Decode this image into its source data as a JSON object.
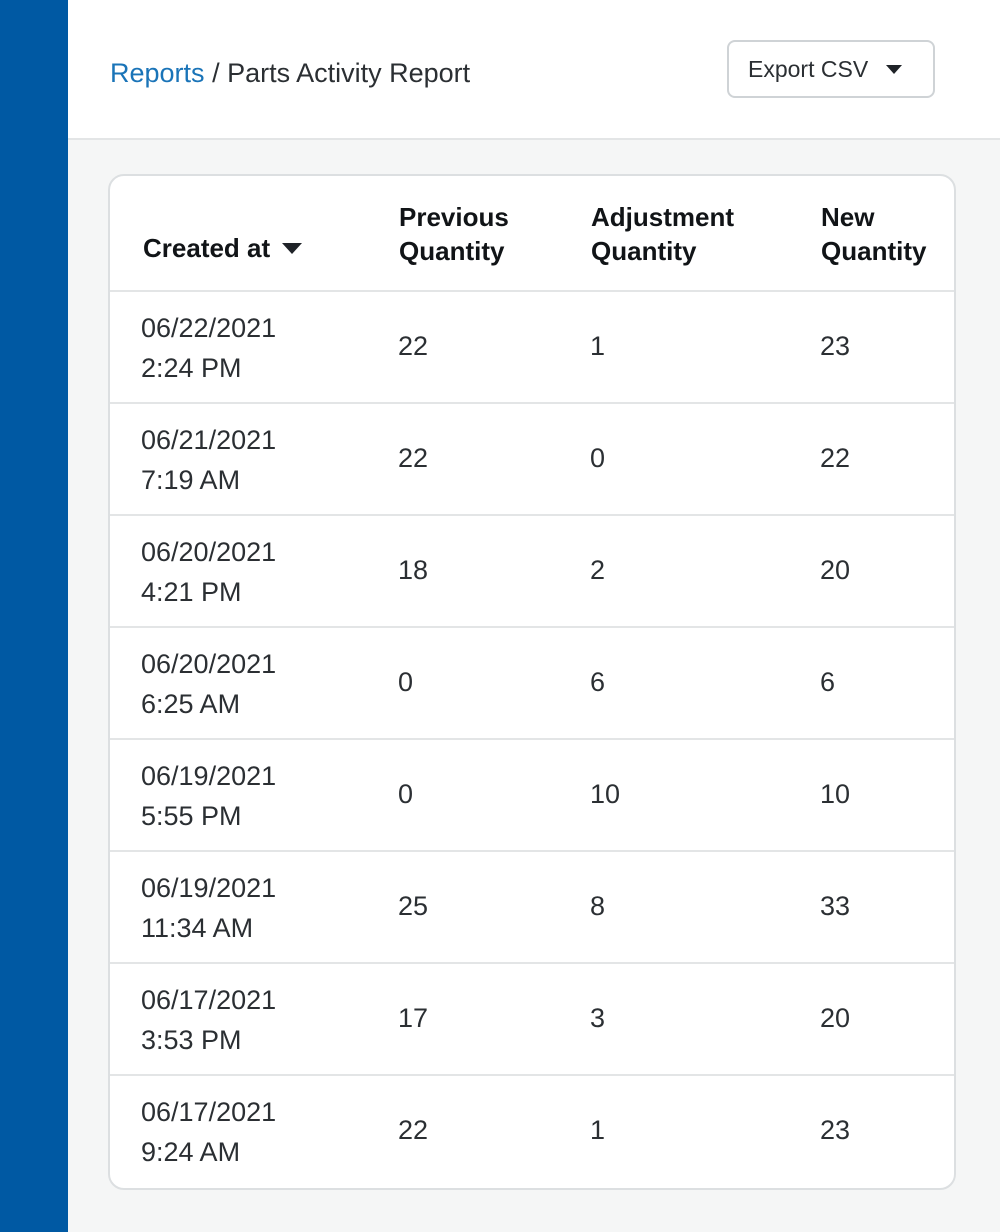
{
  "breadcrumb": {
    "parent": "Reports",
    "separator": "/",
    "current": "Parts Activity Report"
  },
  "export_button": {
    "label": "Export CSV",
    "icon": "caret-down-icon"
  },
  "table": {
    "headers": {
      "created_at": "Created at",
      "previous_line1": "Previous",
      "previous_line2": "Quantity",
      "adjustment_line1": "Adjustment",
      "adjustment_line2": "Quantity",
      "new_line1": "New",
      "new_line2": "Quantity"
    },
    "sort_icon": "caret-down-icon",
    "rows": [
      {
        "date": "06/22/2021",
        "time": "2:24 PM",
        "previous": "22",
        "adjustment": "1",
        "new": "23"
      },
      {
        "date": "06/21/2021",
        "time": "7:19 AM",
        "previous": "22",
        "adjustment": "0",
        "new": "22"
      },
      {
        "date": "06/20/2021",
        "time": "4:21 PM",
        "previous": "18",
        "adjustment": "2",
        "new": "20"
      },
      {
        "date": "06/20/2021",
        "time": "6:25 AM",
        "previous": "0",
        "adjustment": "6",
        "new": "6"
      },
      {
        "date": "06/19/2021",
        "time": "5:55 PM",
        "previous": "0",
        "adjustment": "10",
        "new": "10"
      },
      {
        "date": "06/19/2021",
        "time": "11:34 AM",
        "previous": "25",
        "adjustment": "8",
        "new": "33"
      },
      {
        "date": "06/17/2021",
        "time": "3:53 PM",
        "previous": "17",
        "adjustment": "3",
        "new": "20"
      },
      {
        "date": "06/17/2021",
        "time": "9:24 AM",
        "previous": "22",
        "adjustment": "1",
        "new": "23"
      }
    ]
  },
  "colors": {
    "sidebar": "#0059a3",
    "link": "#1a74b8",
    "background": "#f5f6f6"
  }
}
